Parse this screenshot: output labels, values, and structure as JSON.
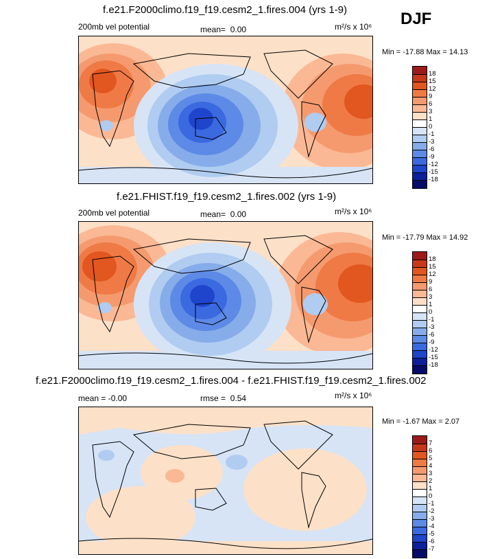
{
  "season": "DJF",
  "panels": [
    {
      "title": "f.e21.F2000climo.f19_f19.cesm2_1.fires.004 (yrs 1-9)",
      "left_label": "200mb vel potential",
      "mean_label": "mean=",
      "mean_value": "0.00",
      "units": "m²/s x 10⁶",
      "minmax": "Min = -17.88 Max =  14.13",
      "colorbar_labels": [
        "18",
        "15",
        "12",
        "9",
        "6",
        "3",
        "1",
        "0",
        "-1",
        "-3",
        "-6",
        "-9",
        "-12",
        "-15",
        "-18"
      ],
      "colorbar_colors": [
        "#9b1b1b",
        "#c8381a",
        "#e2561f",
        "#ef7a45",
        "#f59a6f",
        "#fab894",
        "#fde0c8",
        "#ffffff",
        "#d6e4f6",
        "#b0ccf0",
        "#86acea",
        "#5c8ae6",
        "#3b69e0",
        "#1f45cc",
        "#0e1f9c",
        "#060b6a"
      ]
    },
    {
      "title": "f.e21.FHIST.f19_f19.cesm2_1.fires.002 (yrs 1-9)",
      "left_label": "200mb vel potential",
      "mean_label": "mean=",
      "mean_value": "0.00",
      "units": "m²/s x 10⁶",
      "minmax": "Min = -17.79 Max =  14.92",
      "colorbar_labels": [
        "18",
        "15",
        "12",
        "9",
        "6",
        "3",
        "1",
        "0",
        "-1",
        "-3",
        "-6",
        "-9",
        "-12",
        "-15",
        "-18"
      ],
      "colorbar_colors": [
        "#9b1b1b",
        "#c8381a",
        "#e2561f",
        "#ef7a45",
        "#f59a6f",
        "#fab894",
        "#fde0c8",
        "#ffffff",
        "#d6e4f6",
        "#b0ccf0",
        "#86acea",
        "#5c8ae6",
        "#3b69e0",
        "#1f45cc",
        "#0e1f9c",
        "#060b6a"
      ]
    },
    {
      "title": "f.e21.F2000climo.f19_f19.cesm2_1.fires.004 - f.e21.FHIST.f19_f19.cesm2_1.fires.002",
      "left_label": "mean =  -0.00",
      "rmse_label": "rmse =",
      "rmse_value": "0.54",
      "units": "m²/s x 10⁶",
      "minmax": "Min = -1.67 Max =  2.07",
      "colorbar_labels": [
        "7",
        "6",
        "5",
        "4",
        "3",
        "2",
        "1",
        "0",
        "-1",
        "-2",
        "-3",
        "-4",
        "-5",
        "-6",
        "-7"
      ],
      "colorbar_colors": [
        "#9b1b1b",
        "#c8381a",
        "#e2561f",
        "#ef7a45",
        "#f59a6f",
        "#fab894",
        "#fde0c8",
        "#ffffff",
        "#d6e4f6",
        "#b0ccf0",
        "#86acea",
        "#5c8ae6",
        "#3b69e0",
        "#1f45cc",
        "#0e1f9c",
        "#060b6a"
      ]
    }
  ],
  "chart_data": [
    {
      "type": "heatmap",
      "title": "f.e21.F2000climo.f19_f19.cesm2_1.fires.004 (yrs 1-9)",
      "variable": "200mb vel potential",
      "season": "DJF",
      "mean": 0.0,
      "units": "m2/s x 10^6",
      "min": -17.88,
      "max": 14.13,
      "contour_levels": [
        -18,
        -15,
        -12,
        -9,
        -6,
        -3,
        -1,
        0,
        1,
        3,
        6,
        9,
        12,
        15,
        18
      ]
    },
    {
      "type": "heatmap",
      "title": "f.e21.FHIST.f19_f19.cesm2_1.fires.002 (yrs 1-9)",
      "variable": "200mb vel potential",
      "season": "DJF",
      "mean": 0.0,
      "units": "m2/s x 10^6",
      "min": -17.79,
      "max": 14.92,
      "contour_levels": [
        -18,
        -15,
        -12,
        -9,
        -6,
        -3,
        -1,
        0,
        1,
        3,
        6,
        9,
        12,
        15,
        18
      ]
    },
    {
      "type": "heatmap",
      "title": "f.e21.F2000climo.f19_f19.cesm2_1.fires.004 - f.e21.FHIST.f19_f19.cesm2_1.fires.002",
      "season": "DJF",
      "mean": -0.0,
      "rmse": 0.54,
      "units": "m2/s x 10^6",
      "min": -1.67,
      "max": 2.07,
      "contour_levels": [
        -7,
        -6,
        -5,
        -4,
        -3,
        -2,
        -1,
        0,
        1,
        2,
        3,
        4,
        5,
        6,
        7
      ]
    }
  ]
}
